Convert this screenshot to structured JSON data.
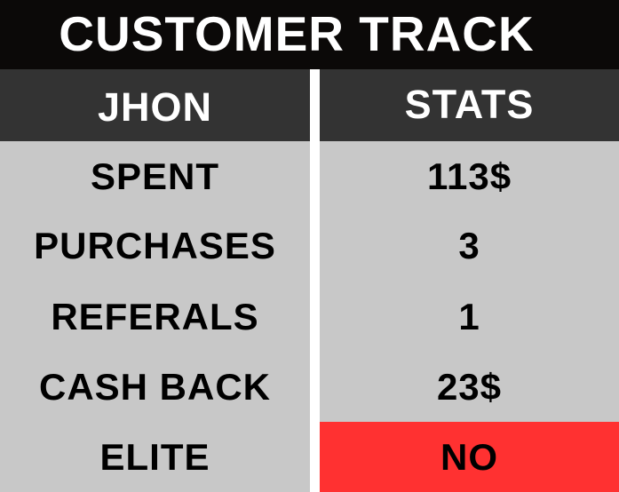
{
  "title": "CUSTOMER TRACK",
  "table": {
    "left_header": "JHON",
    "right_header": "STATS",
    "rows": [
      {
        "label": "SPENT",
        "value": "113$"
      },
      {
        "label": "PURCHASES",
        "value": "3"
      },
      {
        "label": "REFERALS",
        "value": "1"
      },
      {
        "label": "CASH BACK",
        "value": "23$"
      },
      {
        "label": "ELITE",
        "value": "NO"
      }
    ]
  },
  "colors": {
    "title_bg": "#0b0908",
    "header_bg": "#333333",
    "body_bg": "#c8c8c8",
    "elite_no_bg": "#ff3131",
    "divider": "#ffffff"
  }
}
